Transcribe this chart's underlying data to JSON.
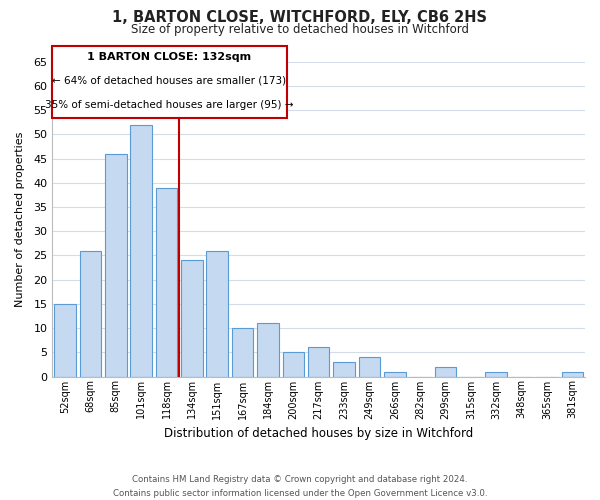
{
  "title": "1, BARTON CLOSE, WITCHFORD, ELY, CB6 2HS",
  "subtitle": "Size of property relative to detached houses in Witchford",
  "xlabel": "Distribution of detached houses by size in Witchford",
  "ylabel": "Number of detached properties",
  "categories": [
    "52sqm",
    "68sqm",
    "85sqm",
    "101sqm",
    "118sqm",
    "134sqm",
    "151sqm",
    "167sqm",
    "184sqm",
    "200sqm",
    "217sqm",
    "233sqm",
    "249sqm",
    "266sqm",
    "282sqm",
    "299sqm",
    "315sqm",
    "332sqm",
    "348sqm",
    "365sqm",
    "381sqm"
  ],
  "values": [
    15,
    26,
    46,
    52,
    39,
    24,
    26,
    10,
    11,
    5,
    6,
    3,
    4,
    1,
    0,
    2,
    0,
    1,
    0,
    0,
    1
  ],
  "bar_color": "#c5d9f0",
  "bar_edge_color": "#5b9bd5",
  "vline_color": "#c00000",
  "vline_x": 4.5,
  "ylim": [
    0,
    65
  ],
  "yticks": [
    0,
    5,
    10,
    15,
    20,
    25,
    30,
    35,
    40,
    45,
    50,
    55,
    60,
    65
  ],
  "annotation_title": "1 BARTON CLOSE: 132sqm",
  "annotation_line1": "← 64% of detached houses are smaller (173)",
  "annotation_line2": "35% of semi-detached houses are larger (95) →",
  "annotation_box_color": "#ffffff",
  "annotation_box_edge": "#c00000",
  "footnote1": "Contains HM Land Registry data © Crown copyright and database right 2024.",
  "footnote2": "Contains public sector information licensed under the Open Government Licence v3.0.",
  "background_color": "#ffffff",
  "grid_color": "#d4dce8",
  "title_fontsize": 10.5,
  "subtitle_fontsize": 8.5
}
